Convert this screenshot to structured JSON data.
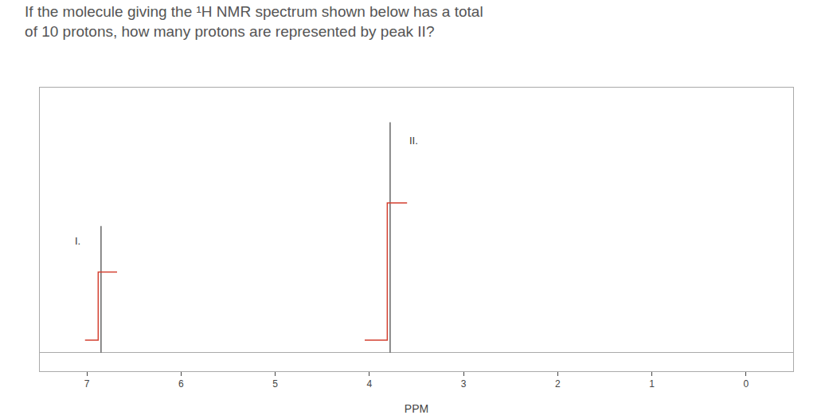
{
  "chart_data": {
    "type": "line",
    "title": "If the molecule giving the ¹H NMR spectrum shown below has a total",
    "subtitle": "of 10 protons, how many protons are represented by peak II?",
    "x_label": "PPM",
    "xlim": [
      7.5,
      -0.5
    ],
    "xticks": [
      7,
      6,
      5,
      4,
      3,
      2,
      1,
      0
    ],
    "ylim": [
      -0.08,
      1.15
    ],
    "tick_labels": "x",
    "grid": false,
    "series": [
      {
        "color": "#666666",
        "x": [
          6.85,
          6.85
        ],
        "values": [
          0,
          0.55
        ]
      },
      {
        "color": "#666666",
        "x": [
          3.78,
          3.78
        ],
        "values": [
          0,
          1.0
        ]
      },
      {
        "color": "#d44030",
        "x": [
          7.02,
          6.88,
          6.88,
          6.68
        ],
        "values": [
          0.055,
          0.055,
          0.35,
          0.35
        ]
      },
      {
        "color": "#d44030",
        "x": [
          4.05,
          3.81,
          3.81,
          3.6
        ],
        "values": [
          0.055,
          0.055,
          0.65,
          0.65
        ]
      }
    ],
    "annotations": [
      {
        "text": "I.",
        "x": 7.1,
        "y": 0.484
      },
      {
        "text": "II.",
        "x": 3.53,
        "y": 0.92
      }
    ]
  }
}
